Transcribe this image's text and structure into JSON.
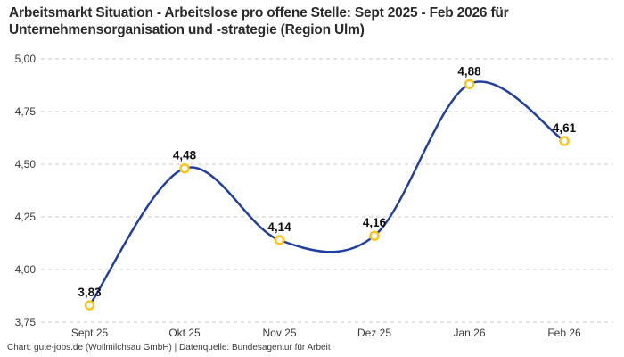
{
  "title": "Arbeitsmarkt Situation - Arbeitslose pro offene Stelle: Sept 2025 - Feb 2026 für Unternehmensorganisation und -strategie (Region Ulm)",
  "footer": "Chart: gute-jobs.de (Wollmilchsau GmbH) | Datenquelle: Bundesagentur für Arbeit",
  "colors": {
    "line": "#203fa0",
    "marker_stroke": "#fcc419",
    "marker_fill": "#ffffff",
    "grid": "#c8c8c8",
    "axis_text": "#3a3a3a",
    "data_label_text": "#111111",
    "title_text": "#2b2b2b",
    "background": "#ffffff"
  },
  "chart_data": {
    "type": "line",
    "title": "Arbeitsmarkt Situation - Arbeitslose pro offene Stelle: Sept 2025 - Feb 2026 für Unternehmensorganisation und -strategie (Region Ulm)",
    "categories": [
      "Sept 25",
      "Okt 25",
      "Nov 25",
      "Dez 25",
      "Jan 26",
      "Feb 26"
    ],
    "values": [
      3.83,
      4.48,
      4.14,
      4.16,
      4.88,
      4.61
    ],
    "value_labels": [
      "3,83",
      "4,48",
      "4,14",
      "4,16",
      "4,88",
      "4,61"
    ],
    "yticks": [
      3.75,
      4.0,
      4.25,
      4.5,
      4.75,
      5.0
    ],
    "ytick_labels": [
      "3,75",
      "4,00",
      "4,25",
      "4,50",
      "4,75",
      "5,00"
    ],
    "ylim": [
      3.75,
      5.0
    ],
    "xlabel": "",
    "ylabel": "",
    "grid": "horizontal-dashed",
    "legend": "none",
    "curve": "smooth",
    "marker": "open-circle"
  }
}
